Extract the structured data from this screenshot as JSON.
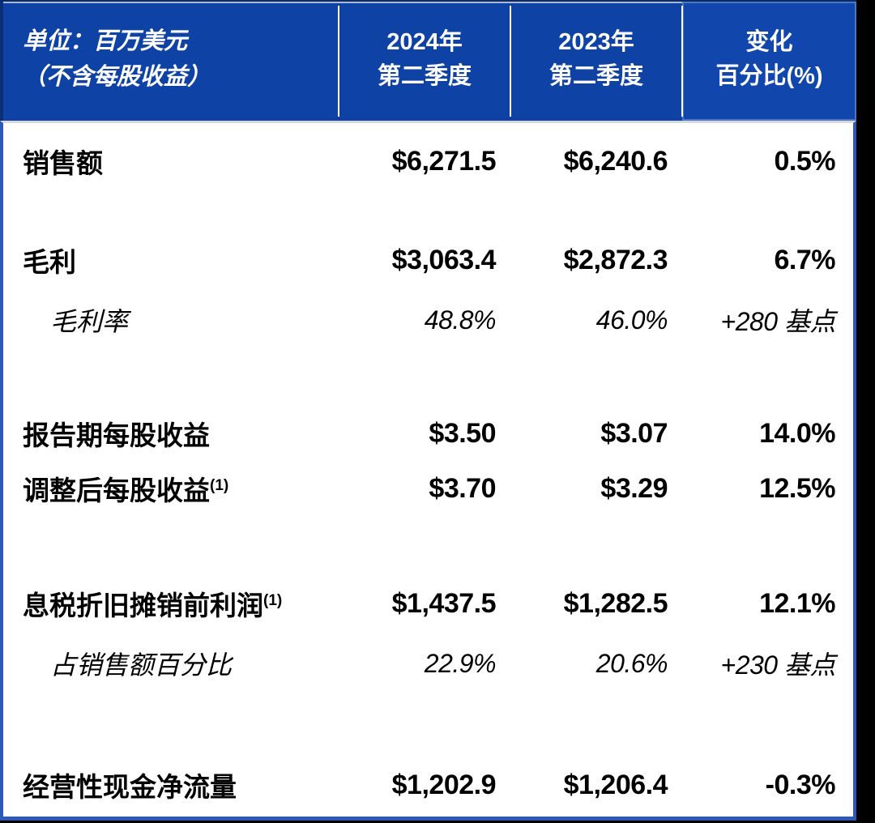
{
  "table": {
    "unit_label": {
      "line1": "单位：百万美元",
      "line2": "（不含每股收益）"
    },
    "columns": [
      {
        "line1": "2024年",
        "line2": "第二季度"
      },
      {
        "line1": "2023年",
        "line2": "第二季度"
      },
      {
        "line1": "变化",
        "line2": "百分比(%)"
      }
    ],
    "sections": [
      {
        "rows": [
          {
            "label": "销售额",
            "sup": "",
            "style": "bold",
            "indent": false,
            "values": [
              "$6,271.5",
              "$6,240.6",
              "0.5%"
            ]
          }
        ]
      },
      {
        "rows": [
          {
            "label": "毛利",
            "sup": "",
            "style": "bold",
            "indent": false,
            "values": [
              "$3,063.4",
              "$2,872.3",
              "6.7%"
            ]
          },
          {
            "label": "毛利率",
            "sup": "",
            "style": "italic",
            "indent": true,
            "values": [
              "48.8%",
              "46.0%",
              "+280 基点"
            ]
          }
        ]
      },
      {
        "rows": [
          {
            "label": "报告期每股收益",
            "sup": "",
            "style": "bold",
            "indent": false,
            "values": [
              "$3.50",
              "$3.07",
              "14.0%"
            ]
          },
          {
            "label": "调整后每股收益",
            "sup": "(1)",
            "style": "bold",
            "indent": false,
            "values": [
              "$3.70",
              "$3.29",
              "12.5%"
            ]
          }
        ]
      },
      {
        "rows": [
          {
            "label": "息税折旧摊销前利润",
            "sup": "(1)",
            "style": "bold",
            "indent": false,
            "values": [
              "$1,437.5",
              "$1,282.5",
              "12.1%"
            ]
          },
          {
            "label": "占销售额百分比",
            "sup": "",
            "style": "italic",
            "indent": true,
            "values": [
              "22.9%",
              "20.6%",
              "+230 基点"
            ]
          }
        ]
      },
      {
        "rows": [
          {
            "label": "经营性现金净流量",
            "sup": "",
            "style": "bold",
            "indent": false,
            "values": [
              "$1,202.9",
              "$1,206.4",
              "-0.3%"
            ]
          }
        ]
      }
    ],
    "colors": {
      "header_blue": "#0e42a4",
      "border_blue": "#2b59b5",
      "header_dark_edge": "#0a2a61",
      "background_black": "#000000"
    }
  }
}
